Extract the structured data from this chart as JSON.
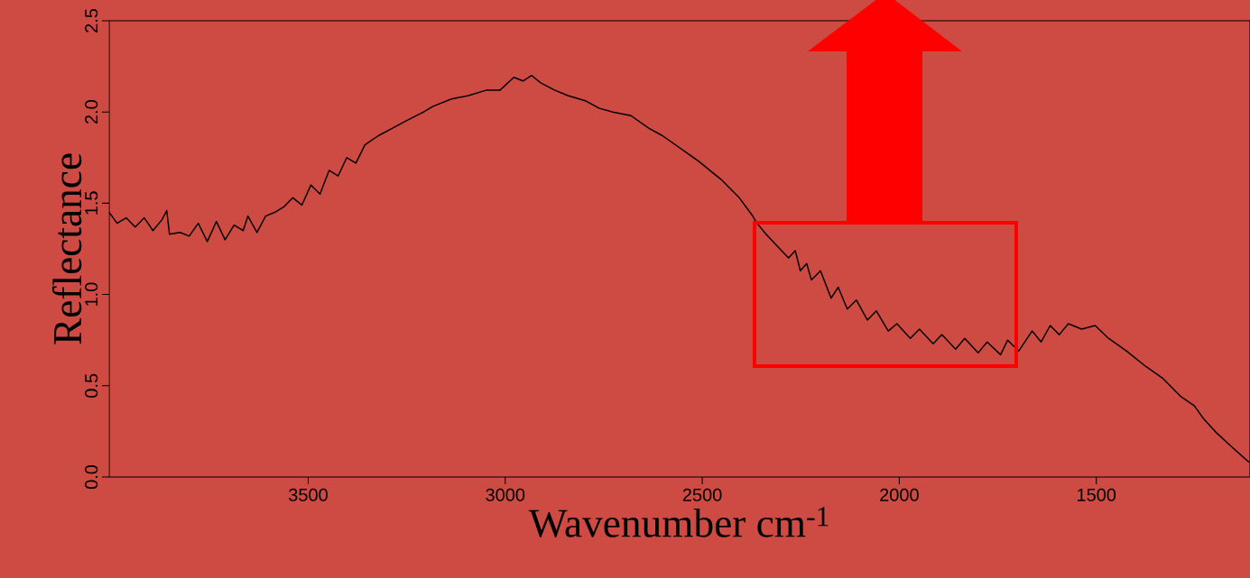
{
  "chart_data": {
    "type": "line",
    "xlabel": "Wavenumber cm$^{-1}$",
    "ylabel": "Reflectance",
    "xlim": [
      4005,
      1110
    ],
    "ylim": [
      0,
      2.5
    ],
    "xticks": [
      3500,
      3000,
      2500,
      2000,
      1500
    ],
    "yticks": [
      {
        "value": 0,
        "label": "0.0"
      },
      0.5,
      {
        "value": 1,
        "label": "1.0"
      },
      1.5,
      {
        "value": 2,
        "label": "2.0"
      },
      2.5
    ],
    "grid": false,
    "marker": "none",
    "line_style": "solid",
    "series": [
      {
        "color": "#000000",
        "x": [
          4005,
          3985,
          3962,
          3939,
          3916,
          3894,
          3871,
          3859,
          3852,
          3825,
          3802,
          3779,
          3756,
          3733,
          3711,
          3688,
          3665,
          3653,
          3630,
          3608,
          3585,
          3562,
          3539,
          3516,
          3493,
          3470,
          3447,
          3424,
          3402,
          3379,
          3356,
          3322,
          3287,
          3253,
          3207,
          3184,
          3138,
          3093,
          3047,
          3013,
          2978,
          2955,
          2933,
          2910,
          2875,
          2841,
          2795,
          2761,
          2727,
          2681,
          2635,
          2601,
          2555,
          2509,
          2452,
          2406,
          2372,
          2361,
          2338,
          2303,
          2281,
          2264,
          2251,
          2235,
          2223,
          2200,
          2173,
          2155,
          2132,
          2109,
          2081,
          2058,
          2028,
          2006,
          1972,
          1949,
          1914,
          1892,
          1857,
          1834,
          1800,
          1777,
          1743,
          1725,
          1697,
          1663,
          1640,
          1617,
          1594,
          1571,
          1537,
          1503,
          1469,
          1423,
          1377,
          1331,
          1285,
          1251,
          1228,
          1194,
          1159,
          1112
        ],
        "values": [
          1.45,
          1.39,
          1.42,
          1.37,
          1.42,
          1.35,
          1.41,
          1.46,
          1.33,
          1.34,
          1.32,
          1.39,
          1.29,
          1.4,
          1.3,
          1.38,
          1.35,
          1.43,
          1.34,
          1.43,
          1.45,
          1.48,
          1.53,
          1.49,
          1.6,
          1.55,
          1.68,
          1.65,
          1.75,
          1.72,
          1.82,
          1.87,
          1.91,
          1.95,
          2.0,
          2.03,
          2.07,
          2.09,
          2.12,
          2.12,
          2.19,
          2.17,
          2.2,
          2.16,
          2.12,
          2.09,
          2.06,
          2.02,
          2.0,
          1.98,
          1.91,
          1.87,
          1.8,
          1.73,
          1.63,
          1.53,
          1.43,
          1.39,
          1.33,
          1.25,
          1.2,
          1.24,
          1.13,
          1.17,
          1.08,
          1.13,
          0.98,
          1.04,
          0.92,
          0.97,
          0.86,
          0.91,
          0.8,
          0.84,
          0.76,
          0.81,
          0.73,
          0.78,
          0.7,
          0.76,
          0.68,
          0.74,
          0.67,
          0.75,
          0.69,
          0.8,
          0.74,
          0.83,
          0.78,
          0.84,
          0.81,
          0.83,
          0.76,
          0.69,
          0.61,
          0.54,
          0.44,
          0.39,
          0.32,
          0.24,
          0.17,
          0.08
        ]
      }
    ]
  }
}
